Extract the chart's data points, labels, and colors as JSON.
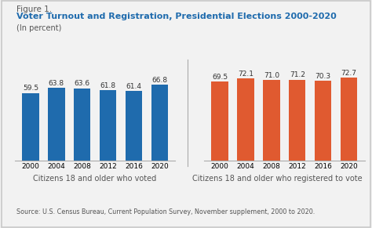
{
  "figure_label": "Figure 1.",
  "title": "Voter Turnout and Registration, Presidential Elections 2000-2020",
  "subtitle": "(In percent)",
  "source": "Source: U.S. Census Bureau, Current Population Survey, November supplement, 2000 to 2020.",
  "years": [
    "2000",
    "2004",
    "2008",
    "2012",
    "2016",
    "2020"
  ],
  "voted_values": [
    59.5,
    63.8,
    63.6,
    61.8,
    61.4,
    66.8
  ],
  "registered_values": [
    69.5,
    72.1,
    71.0,
    71.2,
    70.3,
    72.7
  ],
  "voted_color": "#1F6BAD",
  "registered_color": "#E05A30",
  "voted_label": "Citizens 18 and older who voted",
  "registered_label": "Citizens 18 and older who registered to vote",
  "ylim": [
    0,
    80
  ],
  "background_color": "#f2f2f2",
  "border_color": "#c8c8c8",
  "title_color": "#1F6BAD",
  "label_color": "#555555",
  "figure_label_color": "#555555",
  "value_fontsize": 6.5,
  "axis_label_fontsize": 6.5,
  "xlabel_fontsize": 7.0,
  "source_fontsize": 5.8
}
